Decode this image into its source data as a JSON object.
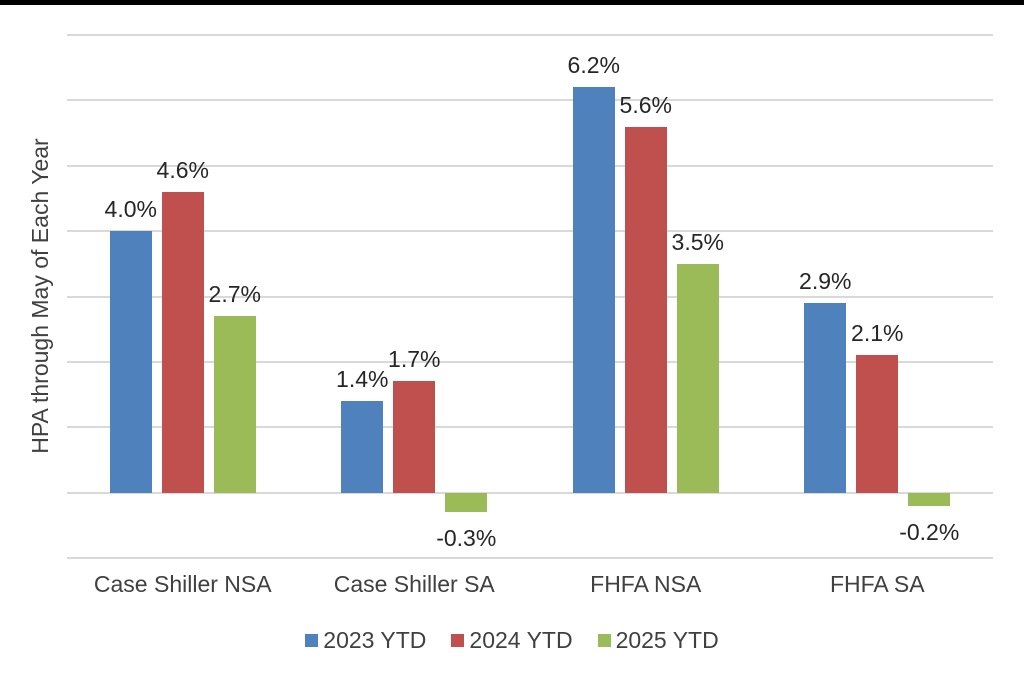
{
  "page": {
    "background": "#ffffff",
    "top_strip_color": "#000000"
  },
  "chart_data": {
    "type": "bar",
    "title": "",
    "xlabel": "",
    "ylabel": "HPA through May of Each Year",
    "categories": [
      "Case Shiller NSA",
      "Case Shiller SA",
      "FHFA NSA",
      "FHFA SA"
    ],
    "series": [
      {
        "name": "2023 YTD",
        "color": "#4F81BD",
        "values": [
          4.0,
          1.4,
          6.2,
          2.9
        ]
      },
      {
        "name": "2024 YTD",
        "color": "#C0504D",
        "values": [
          4.6,
          1.7,
          5.6,
          2.1
        ]
      },
      {
        "name": "2025 YTD",
        "color": "#9BBB59",
        "values": [
          2.7,
          -0.3,
          3.5,
          -0.2
        ]
      }
    ],
    "data_labels": [
      [
        "4.0%",
        "1.4%",
        "6.2%",
        "2.9%"
      ],
      [
        "4.6%",
        "1.7%",
        "5.6%",
        "2.1%"
      ],
      [
        "2.7%",
        "-0.3%",
        "3.5%",
        "-0.2%"
      ]
    ],
    "value_suffix": "%",
    "ylim": [
      -1,
      7
    ],
    "gridline_step": 1,
    "grid": true,
    "y_tick_labels_visible": false,
    "legend_position": "bottom",
    "gridline_color": "#D9D9D9",
    "text_color": "#404040",
    "label_color": "#262626"
  }
}
